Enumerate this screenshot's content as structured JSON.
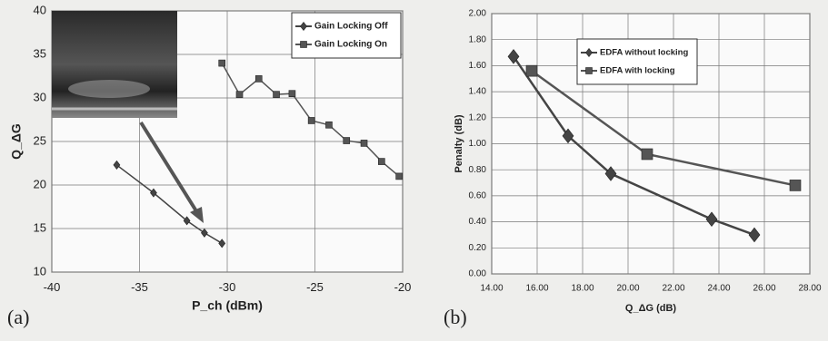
{
  "chart_data": [
    {
      "type": "line",
      "panel": "(a)",
      "xlabel": "P_ch (dBm)",
      "ylabel": "Q_ΔG",
      "xlim": [
        -40,
        -20
      ],
      "ylim": [
        10,
        40
      ],
      "xticks": [
        -40,
        -35,
        -30,
        -25,
        -20
      ],
      "yticks": [
        10,
        15,
        20,
        25,
        30,
        35,
        40
      ],
      "grid": true,
      "legend": "top-right",
      "series": [
        {
          "name": "Gain Locking Off",
          "color": "#444444",
          "marker": "diamond",
          "x": [
            -36.3,
            -34.2,
            -32.3,
            -31.3,
            -30.3
          ],
          "values": [
            22.3,
            19.1,
            15.9,
            14.5,
            13.3
          ]
        },
        {
          "name": "Gain Locking On",
          "color": "#555555",
          "marker": "square",
          "x": [
            -30.3,
            -29.3,
            -28.2,
            -27.2,
            -26.3,
            -25.2,
            -24.2,
            -23.2,
            -22.2,
            -21.2,
            -20.2
          ],
          "values": [
            34,
            30.4,
            32.2,
            30.4,
            30.5,
            27.4,
            26.9,
            25.1,
            24.8,
            22.7,
            21
          ]
        }
      ]
    },
    {
      "type": "line",
      "panel": "(b)",
      "xlabel": "Q_ΔG (dB)",
      "ylabel": "Penalty (dB)",
      "xlim": [
        14,
        28
      ],
      "ylim": [
        0,
        2
      ],
      "xticks": [
        {
          "value": 14,
          "label": "14.00"
        },
        {
          "value": 16,
          "label": "16.00"
        },
        {
          "value": 18,
          "label": "18.00"
        },
        {
          "value": 20,
          "label": "20.00"
        },
        {
          "value": 22,
          "label": "22.00"
        },
        {
          "value": 24,
          "label": "24.00"
        },
        {
          "value": 26,
          "label": "26.00"
        },
        {
          "value": 28,
          "label": "28.00"
        }
      ],
      "yticks": [
        {
          "value": 0,
          "label": "0.00"
        },
        {
          "value": 0.2,
          "label": "0.20"
        },
        {
          "value": 0.4,
          "label": "0.40"
        },
        {
          "value": 0.6,
          "label": "0.60"
        },
        {
          "value": 0.8,
          "label": "0.80"
        },
        {
          "value": 1,
          "label": "1.00"
        },
        {
          "value": 1.2,
          "label": "1.20"
        },
        {
          "value": 1.4,
          "label": "1.40"
        },
        {
          "value": 1.6,
          "label": "1.60"
        },
        {
          "value": 1.8,
          "label": "1.80"
        },
        {
          "value": 2,
          "label": "2.00"
        }
      ],
      "grid": true,
      "legend": "top-center",
      "series": [
        {
          "name": "EDFA without locking",
          "color": "#444444",
          "marker": "diamond",
          "x": [
            14.96,
            17.36,
            19.24,
            23.68,
            25.56
          ],
          "values": [
            1.67,
            1.06,
            0.77,
            0.42,
            0.3
          ]
        },
        {
          "name": "EDFA with locking",
          "color": "#555555",
          "marker": "square",
          "x": [
            15.76,
            20.84,
            27.36
          ],
          "values": [
            1.56,
            0.92,
            0.68
          ]
        }
      ]
    }
  ]
}
